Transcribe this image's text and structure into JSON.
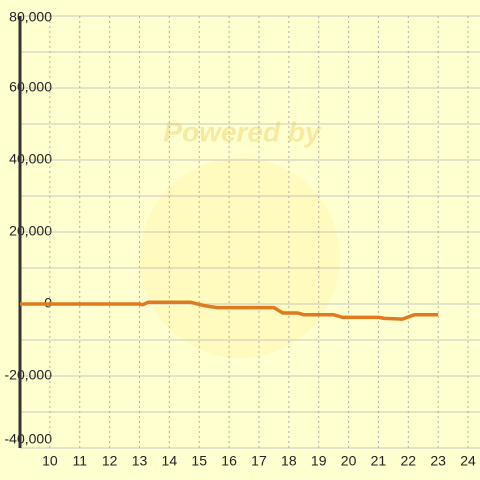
{
  "chart_data": {
    "type": "line",
    "watermark": "Powered by",
    "x": [
      9,
      13,
      13.1,
      13.3,
      14.7,
      15.2,
      15.6,
      17.5,
      17.8,
      18.3,
      18.5,
      19.5,
      19.8,
      21,
      21.2,
      21.8,
      22.2,
      23
    ],
    "series": [
      {
        "color": "#e07a1f",
        "values": [
          0,
          0,
          -200,
          500,
          500,
          -500,
          -1000,
          -1000,
          -2500,
          -2500,
          -3000,
          -3000,
          -3700,
          -3700,
          -4000,
          -4200,
          -3000,
          -3000
        ]
      }
    ],
    "xlim": [
      9,
      24.4
    ],
    "xticks": [
      10,
      11,
      12,
      13,
      14,
      15,
      16,
      17,
      18,
      19,
      20,
      21,
      22,
      23,
      24
    ],
    "ylim": [
      -40000,
      80000
    ],
    "yticks": [
      {
        "value": -40000,
        "label": "-40,000"
      },
      {
        "value": -20000,
        "label": "-20,000"
      },
      0,
      {
        "value": 20000,
        "label": "20,000"
      },
      {
        "value": 40000,
        "label": "40,000"
      },
      {
        "value": 60000,
        "label": "60,000"
      },
      {
        "value": 80000,
        "label": "80,000"
      }
    ],
    "minor_yticks": [
      -30000,
      -10000,
      10000,
      30000,
      50000,
      70000
    ],
    "grid": true
  }
}
